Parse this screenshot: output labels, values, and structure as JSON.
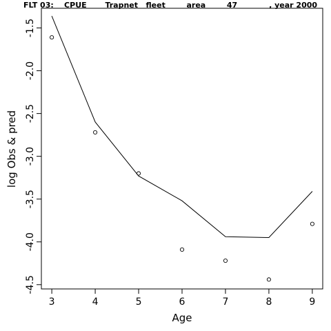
{
  "chart_data": {
    "type": "line",
    "title": "FLT 03:    CPUE       Trapnet   fleet        area        47            , year 2000",
    "xlabel": "Age",
    "ylabel": "log Obs & pred",
    "x": [
      3,
      4,
      5,
      6,
      7,
      8,
      9
    ],
    "xticks": [
      "3",
      "4",
      "5",
      "6",
      "7",
      "8",
      "9"
    ],
    "yticks": [
      "-1.5",
      "-2.0",
      "-2.5",
      "-3.0",
      "-3.5",
      "-4.0",
      "-4.5"
    ],
    "xlim": [
      2.76,
      9.24
    ],
    "ylim": [
      -4.55,
      -1.27
    ],
    "series": [
      {
        "style": "points",
        "marker": "open-circle",
        "values": [
          -1.61,
          -2.72,
          -3.2,
          -4.09,
          -4.22,
          -4.44,
          -3.79
        ]
      },
      {
        "style": "line",
        "values": [
          -1.36,
          -2.6,
          -3.23,
          -3.52,
          -3.94,
          -3.95,
          -3.41
        ]
      }
    ],
    "box": true,
    "grid": false
  }
}
